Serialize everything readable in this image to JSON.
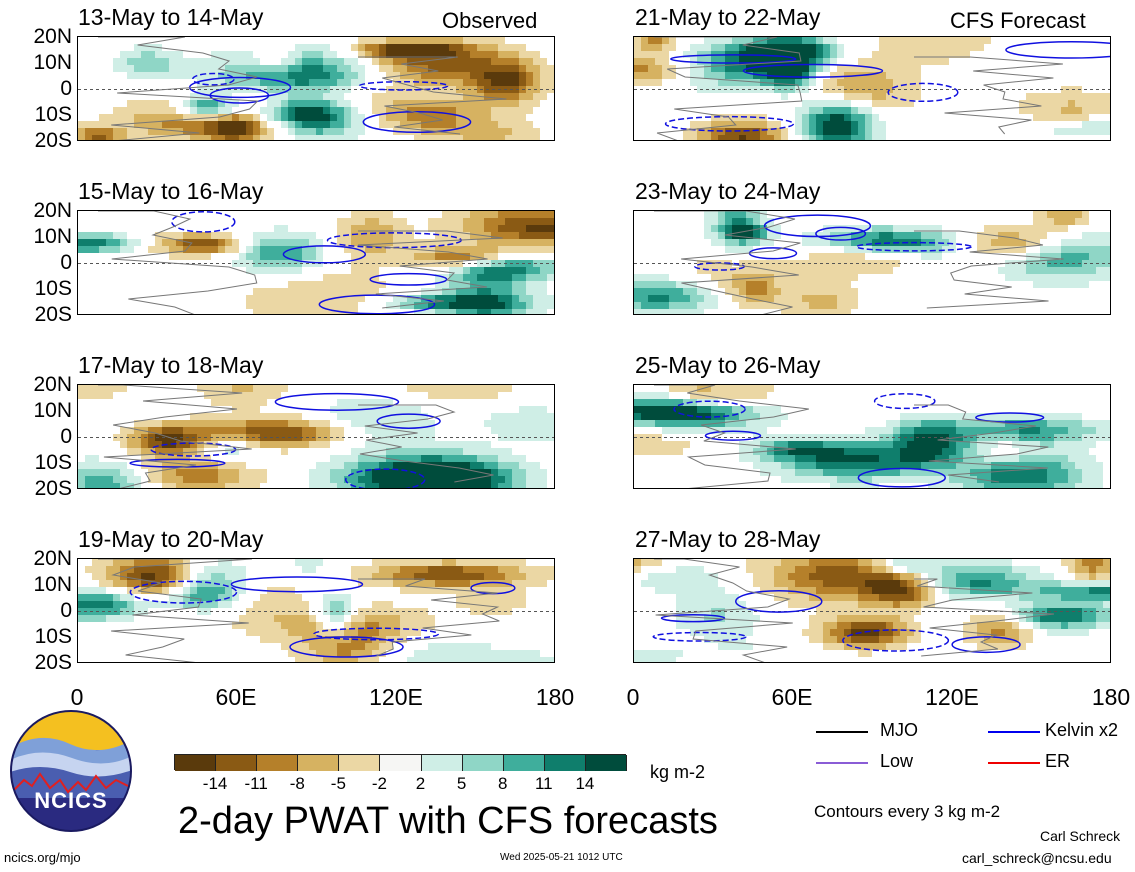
{
  "figure": {
    "title": "2-day PWAT with CFS forecasts",
    "footer_left": "ncics.org/mjo",
    "footer_center": "Wed 2025-05-21 1012 UTC",
    "footer_right_name": "Carl Schreck",
    "footer_right_email": "carl_schreck@ncsu.edu",
    "logo_text": "NCICS",
    "contours_note": "Contours every 3 kg m-2",
    "colorbar_unit": "kg m-2",
    "observed_label": "Observed",
    "forecast_label": "CFS Forecast"
  },
  "chart_data": {
    "type": "heatmap",
    "variable": "2-day PWAT anomaly",
    "panels": [
      {
        "period": "13-May to 14-May",
        "source": "Observed"
      },
      {
        "period": "15-May to 16-May",
        "source": "Observed"
      },
      {
        "period": "17-May to 18-May",
        "source": "Observed"
      },
      {
        "period": "19-May to 20-May",
        "source": "Observed"
      },
      {
        "period": "21-May to 22-May",
        "source": "CFS Forecast"
      },
      {
        "period": "23-May to 24-May",
        "source": "CFS Forecast"
      },
      {
        "period": "25-May to 26-May",
        "source": "CFS Forecast"
      },
      {
        "period": "27-May to 28-May",
        "source": "CFS Forecast"
      }
    ],
    "y_ticks": [
      "20N",
      "10N",
      "0",
      "10S",
      "20S"
    ],
    "x_ticks": [
      "0",
      "60E",
      "120E",
      "180"
    ],
    "xlim": [
      0,
      180
    ],
    "ylim": [
      -20,
      20
    ],
    "colorbar": {
      "labels": [
        "-14",
        "-11",
        "-8",
        "-5",
        "-2",
        "2",
        "5",
        "8",
        "11",
        "14"
      ],
      "colors": [
        "#5a3a0c",
        "#8a5a14",
        "#b5802a",
        "#d6b261",
        "#ebd7a4",
        "#f6f1e2",
        "#f6f6f4",
        "#cfeee6",
        "#8fd6c6",
        "#3fae9c",
        "#0f7e6c",
        "#004c3c"
      ]
    },
    "legend": [
      {
        "name": "MJO",
        "color": "#000000"
      },
      {
        "name": "Kelvin x2",
        "color": "#0000ee"
      },
      {
        "name": "Low",
        "color": "#8a5cd6"
      },
      {
        "name": "ER",
        "color": "#ee0000"
      }
    ]
  }
}
